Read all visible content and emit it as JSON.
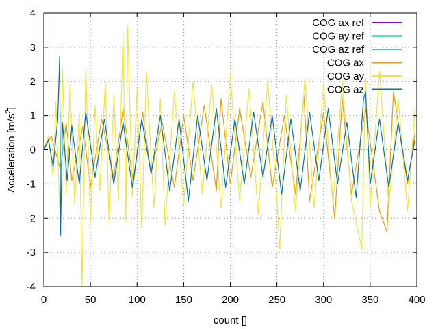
{
  "chart_data": {
    "type": "line",
    "xlabel": "count []",
    "ylabel_prefix": "Acceleration [m/s",
    "ylabel_sup": "2",
    "ylabel_suffix": "]",
    "xlim": [
      0,
      400
    ],
    "ylim": [
      -4,
      4
    ],
    "xticks": [
      "0",
      "50",
      "100",
      "150",
      "200",
      "250",
      "300",
      "350",
      "400"
    ],
    "yticks": [
      "-4",
      "-3",
      "-2",
      "-1",
      "0",
      "1",
      "2",
      "3",
      "4"
    ],
    "grid": true,
    "legend_position": "top-right",
    "series": [
      {
        "name": "COG ax ref",
        "color": "#9400d3",
        "values": []
      },
      {
        "name": "COG ay ref",
        "color": "#009e73",
        "values": []
      },
      {
        "name": "COG az ref",
        "color": "#56b4e9",
        "values": []
      },
      {
        "name": "COG ax",
        "color": "#e69f00",
        "x": [
          0,
          8,
          18,
          24,
          30,
          42,
          50,
          62,
          75,
          85,
          96,
          106,
          115,
          127,
          140,
          150,
          160,
          172,
          185,
          190,
          200,
          210,
          222,
          235,
          245,
          258,
          270,
          279,
          285,
          300,
          312,
          320,
          330,
          345,
          360,
          368,
          375,
          390,
          398
        ],
        "values": [
          0,
          0.4,
          -0.6,
          0.8,
          -0.9,
          0.7,
          -1.1,
          0.9,
          -0.8,
          1.2,
          -1.0,
          1.1,
          -0.7,
          0.8,
          -1.1,
          1.0,
          -0.9,
          1.3,
          -1.2,
          1.5,
          -1.0,
          1.2,
          -0.8,
          1.4,
          -1.1,
          1.0,
          -1.3,
          1.6,
          -1.5,
          1.1,
          -2.0,
          1.5,
          -1.3,
          1.2,
          -1.8,
          -2.4,
          1.7,
          -1.0,
          0.5
        ]
      },
      {
        "name": "COG ay",
        "color": "#f0e442",
        "x": [
          0,
          5,
          10,
          13,
          17,
          20,
          24,
          28,
          33,
          38,
          41,
          45,
          50,
          55,
          60,
          66,
          70,
          75,
          80,
          85,
          88,
          90,
          95,
          100,
          105,
          110,
          118,
          125,
          130,
          140,
          150,
          160,
          170,
          180,
          190,
          200,
          210,
          220,
          230,
          240,
          250,
          253,
          260,
          270,
          280,
          290,
          300,
          310,
          320,
          330,
          341,
          345,
          350,
          360,
          370,
          380,
          390,
          398
        ],
        "values": [
          0,
          0.4,
          -0.8,
          1.4,
          -1.7,
          2.4,
          -1.3,
          1.9,
          -1.6,
          1.1,
          -4.0,
          2.4,
          -2.1,
          1.3,
          -1.2,
          2.0,
          -2.2,
          1.6,
          -1.5,
          3.4,
          -2.1,
          3.6,
          -1.4,
          1.8,
          -2.3,
          2.3,
          -1.7,
          1.5,
          -2.2,
          1.7,
          -1.6,
          2.0,
          -1.3,
          1.9,
          -1.7,
          2.2,
          -1.5,
          1.8,
          -1.9,
          2.0,
          -1.4,
          -2.9,
          1.6,
          -1.8,
          2.1,
          -1.7,
          1.9,
          -1.6,
          2.0,
          -1.5,
          -2.9,
          2.1,
          -1.7,
          2.3,
          -1.6,
          1.5,
          -1.8,
          1.2
        ]
      },
      {
        "name": "COG az",
        "color": "#0072b2",
        "x": [
          0,
          5,
          10,
          15,
          17,
          18,
          20,
          25,
          30,
          38,
          45,
          55,
          65,
          75,
          85,
          95,
          105,
          115,
          125,
          135,
          145,
          155,
          165,
          175,
          185,
          195,
          205,
          215,
          225,
          235,
          245,
          255,
          265,
          275,
          285,
          295,
          305,
          315,
          325,
          335,
          343,
          345,
          350,
          360,
          370,
          380,
          390,
          398
        ],
        "values": [
          0,
          0.3,
          -0.5,
          0.9,
          2.75,
          -2.5,
          0.8,
          -0.9,
          0.7,
          -1.0,
          1.1,
          -0.8,
          0.9,
          -1.0,
          0.8,
          -1.1,
          0.9,
          -0.7,
          1.0,
          -1.2,
          0.9,
          -1.5,
          1.0,
          -0.9,
          1.2,
          -1.1,
          0.9,
          -1.0,
          1.1,
          -0.8,
          1.0,
          -1.3,
          0.9,
          -1.2,
          1.1,
          -0.9,
          1.2,
          -1.0,
          0.8,
          -1.4,
          1.5,
          1.7,
          -1.0,
          0.9,
          -1.1,
          0.8,
          -0.9,
          0.3
        ]
      }
    ]
  }
}
